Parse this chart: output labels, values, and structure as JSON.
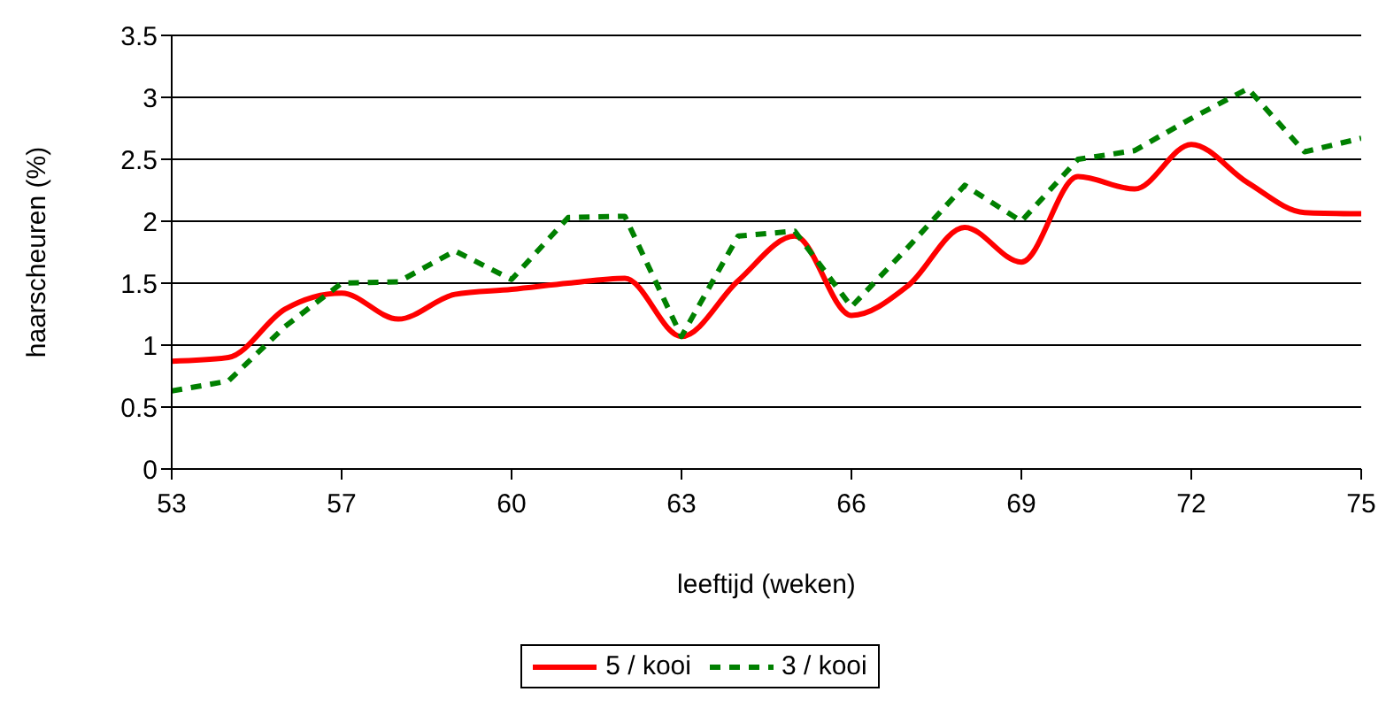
{
  "chart_data": {
    "type": "line",
    "xlabel": "leeftijd (weken)",
    "ylabel": "haarscheuren (%)",
    "categories": [
      "53",
      null,
      null,
      "57",
      null,
      null,
      "60",
      null,
      null,
      "63",
      null,
      null,
      "66",
      null,
      null,
      "69",
      null,
      null,
      "72",
      null,
      null,
      "75"
    ],
    "ylim": [
      0,
      3.5
    ],
    "yticks": [
      0,
      0.5,
      1,
      1.5,
      2,
      2.5,
      3,
      3.5
    ],
    "grid": "y",
    "legend": "bottom",
    "marker": "none",
    "series": [
      {
        "name": "5 / kooi",
        "color": "#ff0000",
        "line_style": "solid",
        "values": [
          0.87,
          0.9,
          1.29,
          1.42,
          1.21,
          1.41,
          1.45,
          1.5,
          1.54,
          1.07,
          1.52,
          1.88,
          1.24,
          1.48,
          1.95,
          1.67,
          2.36,
          2.26,
          2.62,
          2.31,
          2.07,
          2.06
        ]
      },
      {
        "name": "3 / kooi",
        "color": "#008000",
        "line_style": "dashed",
        "values": [
          0.63,
          0.71,
          1.15,
          1.5,
          1.51,
          1.76,
          1.53,
          2.03,
          2.04,
          1.07,
          1.88,
          1.92,
          1.31,
          1.79,
          2.29,
          2.0,
          2.5,
          2.57,
          2.83,
          3.07,
          2.56,
          2.67
        ]
      }
    ]
  }
}
